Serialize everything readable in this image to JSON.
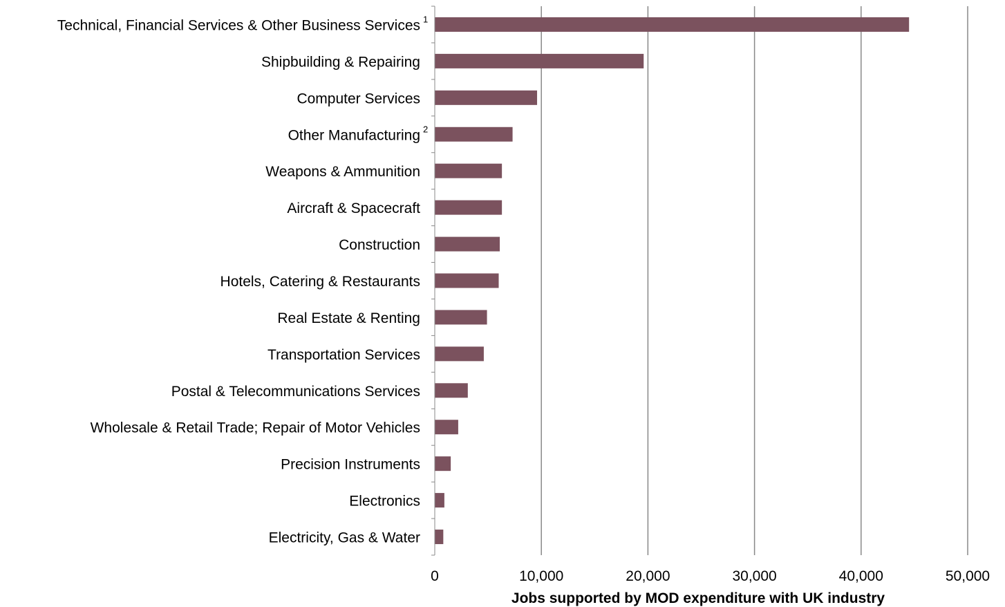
{
  "chart_data": {
    "type": "bar",
    "orientation": "horizontal",
    "categories": [
      "Technical, Financial Services & Other Business Services",
      "Shipbuilding & Repairing",
      "Computer Services",
      "Other Manufacturing",
      "Weapons & Ammunition",
      "Aircraft & Spacecraft",
      "Construction",
      "Hotels, Catering & Restaurants",
      "Real Estate & Renting",
      "Transportation Services",
      "Postal & Telecommunications Services",
      "Wholesale & Retail Trade; Repair of Motor Vehicles",
      "Precision Instruments",
      "Electronics",
      "Electricity, Gas & Water"
    ],
    "category_footnotes": [
      "1",
      "",
      "",
      "2",
      "",
      "",
      "",
      "",
      "",
      "",
      "",
      "",
      "",
      "",
      ""
    ],
    "values": [
      44500,
      19600,
      9600,
      7300,
      6300,
      6300,
      6100,
      6000,
      4900,
      4600,
      3100,
      2200,
      1500,
      900,
      800
    ],
    "xlabel": "Jobs supported by MOD expenditure with UK industry",
    "xlim": [
      0,
      50000
    ],
    "x_ticks": [
      0,
      10000,
      20000,
      30000,
      40000,
      50000
    ],
    "x_tick_labels": [
      "0",
      "10,000",
      "20,000",
      "30,000",
      "40,000",
      "50,000"
    ],
    "grid": "vertical",
    "bar_color": "#7B525E",
    "grid_color": "#888888"
  }
}
